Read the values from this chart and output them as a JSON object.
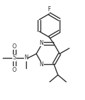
{
  "line_color": "#2a2a2a",
  "line_width": 1.0,
  "font_size": 5.8,
  "bg_color": "#ffffff",
  "xlim": [
    0.0,
    1.0
  ],
  "ylim": [
    0.0,
    1.0
  ]
}
